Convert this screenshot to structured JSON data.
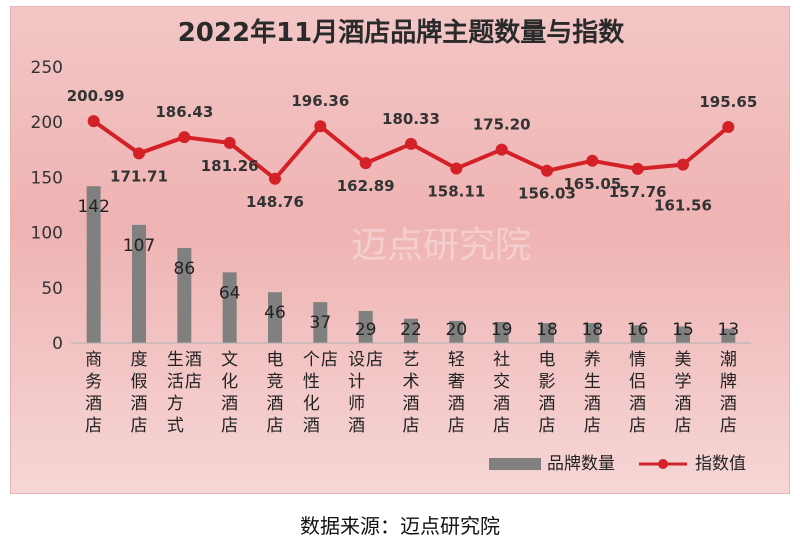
{
  "chart_data": {
    "type": "bar+line",
    "title": "2022年11月酒店品牌主题数量与指数",
    "categories": [
      "商务酒店",
      "度假酒店",
      "生活方式酒店",
      "文化酒店",
      "电竞酒店",
      "个性化酒店",
      "设计师酒店",
      "艺术酒店",
      "轻奢酒店",
      "社交酒店",
      "电影酒店",
      "养生酒店",
      "情侣酒店",
      "美学酒店",
      "潮牌酒店"
    ],
    "ylim": [
      0,
      250
    ],
    "yticks": [
      0,
      50,
      100,
      150,
      200,
      250
    ],
    "series": [
      {
        "name": "品牌数量",
        "type": "bar",
        "color": "#808080",
        "values": [
          142,
          107,
          86,
          64,
          46,
          37,
          29,
          22,
          20,
          19,
          18,
          18,
          16,
          15,
          13
        ]
      },
      {
        "name": "指数值",
        "type": "line",
        "color": "#d42027",
        "values": [
          200.99,
          171.71,
          186.43,
          181.26,
          148.76,
          196.36,
          162.89,
          180.33,
          158.11,
          175.2,
          156.03,
          165.05,
          157.76,
          161.56,
          195.65
        ],
        "labels": [
          "200.99",
          "171.71",
          "186.43",
          "181.26",
          "148.76",
          "196.36",
          "162.89",
          "180.33",
          "158.11",
          "175.20",
          "156.03",
          "165.05",
          "157.76",
          "161.56",
          "195.65"
        ]
      }
    ],
    "legend_position": "bottom-right",
    "grid": false
  },
  "watermark": "迈点研究院",
  "source_note": "数据来源：迈点研究院"
}
